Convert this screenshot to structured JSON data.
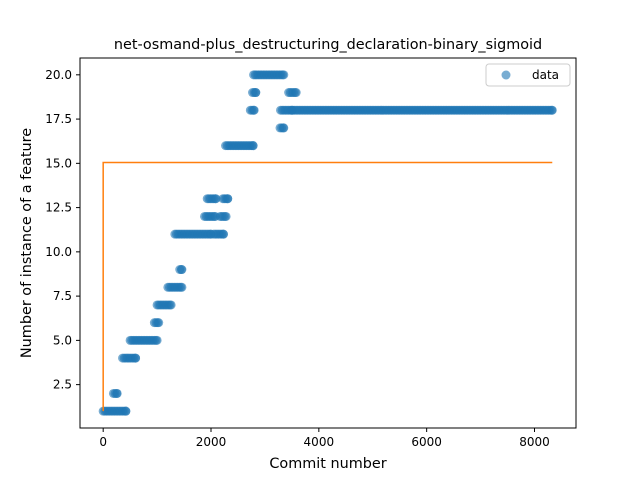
{
  "chart_data": {
    "type": "scatter",
    "title": "net-osmand-plus_destructuring_declaration-binary_sigmoid",
    "xlabel": "Commit number",
    "ylabel": "Number of instance of a feature",
    "xlim": [
      -430,
      8770
    ],
    "ylim": [
      0.05,
      20.95
    ],
    "xticks": [
      0,
      2000,
      4000,
      6000,
      8000
    ],
    "xtick_labels": [
      "0",
      "2000",
      "4000",
      "6000",
      "8000"
    ],
    "yticks": [
      2.5,
      5.0,
      7.5,
      10.0,
      12.5,
      15.0,
      17.5,
      20.0
    ],
    "ytick_labels": [
      "2.5",
      "5.0",
      "7.5",
      "10.0",
      "12.5",
      "15.0",
      "17.5",
      "20.0"
    ],
    "grid": false,
    "legend": {
      "position": "top-right",
      "entries": [
        "data"
      ]
    },
    "colors": {
      "data": "#1f77b4",
      "fit": "#ff7f0e"
    },
    "series": [
      {
        "name": "data",
        "kind": "scatter",
        "segments": [
          {
            "x_start": 0,
            "x_end": 420,
            "y": 1
          },
          {
            "x_start": 190,
            "x_end": 260,
            "y": 2
          },
          {
            "x_start": 360,
            "x_end": 600,
            "y": 4
          },
          {
            "x_start": 500,
            "x_end": 1000,
            "y": 5
          },
          {
            "x_start": 950,
            "x_end": 1030,
            "y": 6
          },
          {
            "x_start": 1000,
            "x_end": 1260,
            "y": 7
          },
          {
            "x_start": 1200,
            "x_end": 1460,
            "y": 8
          },
          {
            "x_start": 1420,
            "x_end": 1460,
            "y": 9
          },
          {
            "x_start": 1330,
            "x_end": 2000,
            "y": 11
          },
          {
            "x_start": 2050,
            "x_end": 2230,
            "y": 11
          },
          {
            "x_start": 1880,
            "x_end": 2080,
            "y": 12
          },
          {
            "x_start": 2170,
            "x_end": 2280,
            "y": 12
          },
          {
            "x_start": 1930,
            "x_end": 2090,
            "y": 13
          },
          {
            "x_start": 2220,
            "x_end": 2310,
            "y": 13
          },
          {
            "x_start": 2270,
            "x_end": 2780,
            "y": 16
          },
          {
            "x_start": 2730,
            "x_end": 2800,
            "y": 18
          },
          {
            "x_start": 2770,
            "x_end": 2830,
            "y": 19
          },
          {
            "x_start": 2790,
            "x_end": 3350,
            "y": 20
          },
          {
            "x_start": 3280,
            "x_end": 3350,
            "y": 17
          },
          {
            "x_start": 3290,
            "x_end": 3500,
            "y": 18
          },
          {
            "x_start": 3440,
            "x_end": 3580,
            "y": 19
          },
          {
            "x_start": 3520,
            "x_end": 8330,
            "y": 18
          }
        ],
        "step": 30
      },
      {
        "name": "",
        "kind": "line",
        "x": [
          0,
          0,
          8330
        ],
        "y": [
          1,
          15.05,
          15.05
        ]
      }
    ]
  }
}
